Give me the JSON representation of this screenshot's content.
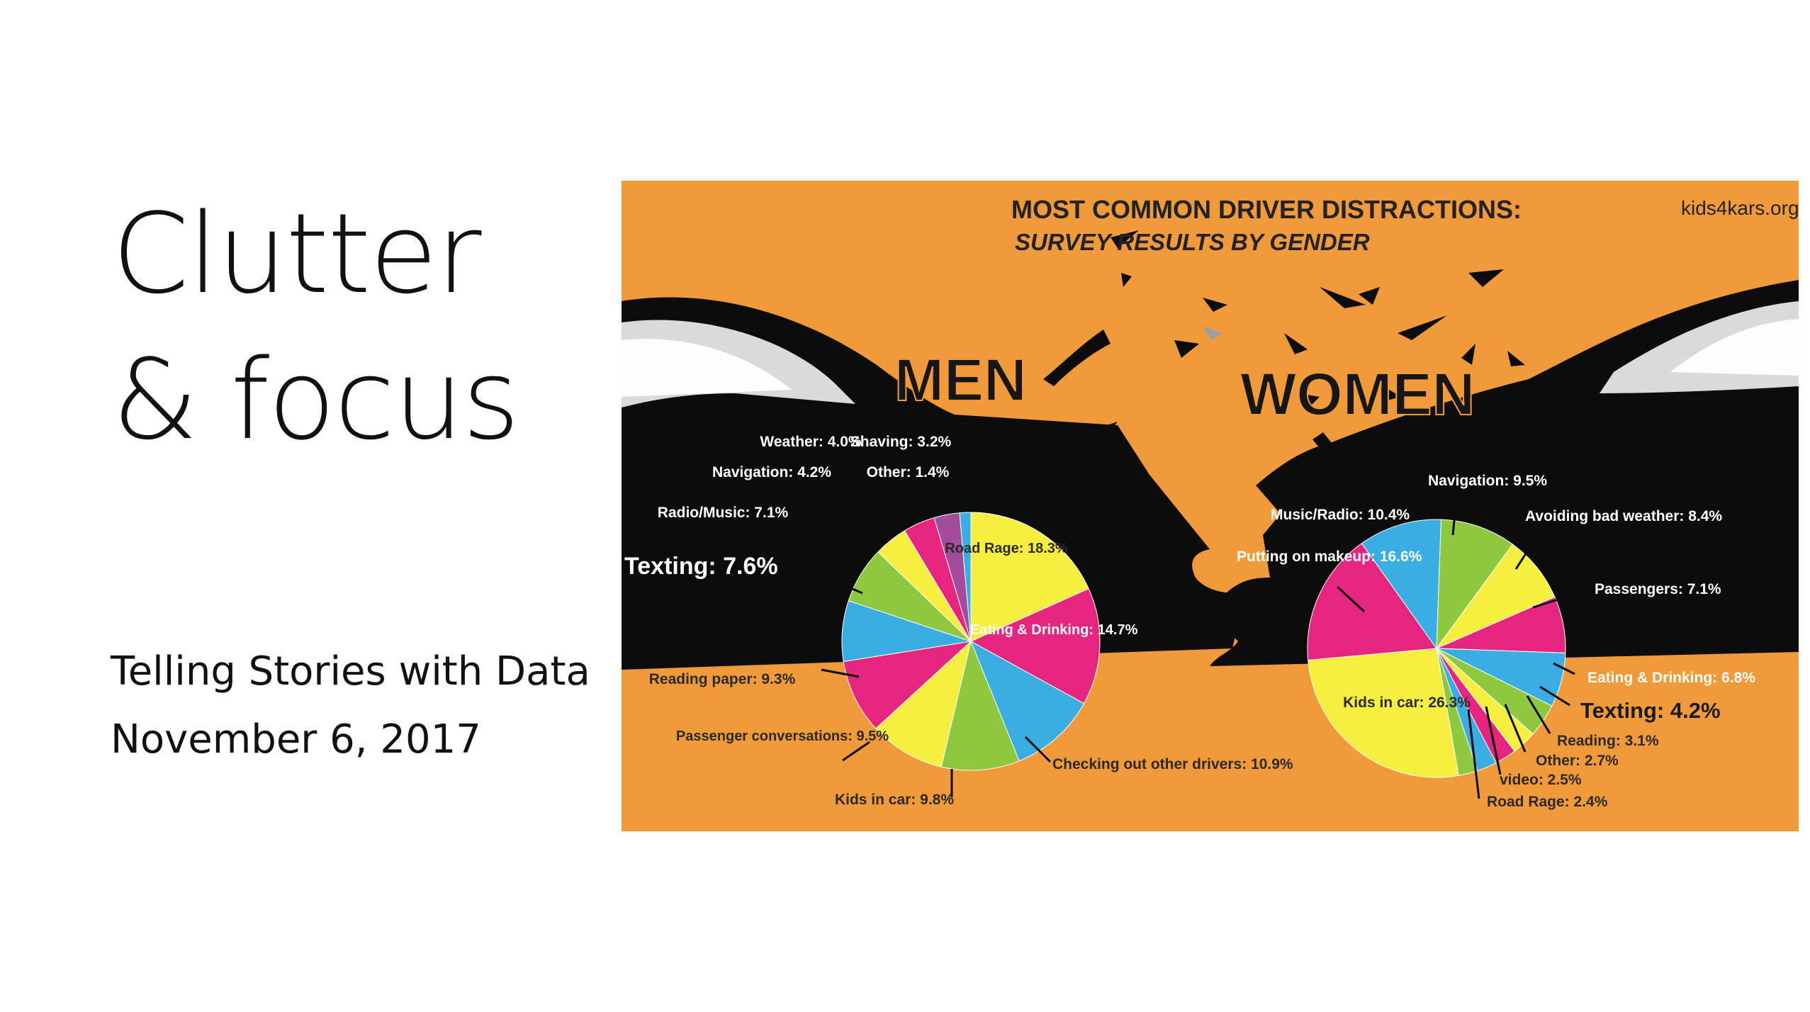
{
  "slide": {
    "title_line1": "Clutter",
    "title_line2": "& focus",
    "subtitle": "Telling Stories with Data",
    "date": "November 6, 2017"
  },
  "infographic": {
    "background": "#f09a3a",
    "title": "MOST COMMON DRIVER DISTRACTIONS:",
    "subtitle": "SURVEY RESULTS BY GENDER",
    "source": "kids4kars.org"
  },
  "palette": {
    "yellow": "#f6ef3f",
    "pink": "#e6267e",
    "green": "#8dc83f",
    "blue": "#38aee3",
    "purple": "#a44c9c",
    "car": "#0c0c0c"
  },
  "chart_data": [
    {
      "type": "pie",
      "title": "MEN",
      "slices": [
        {
          "label": "Road Rage",
          "value": 18.3,
          "display": "Road Rage: 18.3%",
          "color": "yellow"
        },
        {
          "label": "Eating & Drinking",
          "value": 14.7,
          "display": "Eating & Drinking: 14.7%",
          "color": "pink"
        },
        {
          "label": "Checking out other drivers",
          "value": 10.9,
          "display": "Checking out other drivers: 10.9%",
          "color": "blue"
        },
        {
          "label": "Kids in car",
          "value": 9.8,
          "display": "Kids in car: 9.8%",
          "color": "green"
        },
        {
          "label": "Passenger conversations",
          "value": 9.5,
          "display": "Passenger conversations: 9.5%",
          "color": "yellow"
        },
        {
          "label": "Reading paper",
          "value": 9.3,
          "display": "Reading paper: 9.3%",
          "color": "pink"
        },
        {
          "label": "Texting",
          "value": 7.6,
          "display": "Texting: 7.6%",
          "color": "blue"
        },
        {
          "label": "Radio/Music",
          "value": 7.1,
          "display": "Radio/Music: 7.1%",
          "color": "green"
        },
        {
          "label": "Navigation",
          "value": 4.2,
          "display": "Navigation: 4.2%",
          "color": "yellow"
        },
        {
          "label": "Weather",
          "value": 4.0,
          "display": "Weather: 4.0%",
          "color": "pink"
        },
        {
          "label": "Shaving",
          "value": 3.2,
          "display": "Shaving: 3.2%",
          "color": "purple"
        },
        {
          "label": "Other",
          "value": 1.4,
          "display": "Other: 1.4%",
          "color": "blue"
        }
      ]
    },
    {
      "type": "pie",
      "title": "WOMEN",
      "slices": [
        {
          "label": "Navigation",
          "value": 9.5,
          "display": "Navigation: 9.5%",
          "color": "green"
        },
        {
          "label": "Avoiding bad weather",
          "value": 8.4,
          "display": "Avoiding bad weather: 8.4%",
          "color": "yellow"
        },
        {
          "label": "Passengers",
          "value": 7.1,
          "display": "Passengers: 7.1%",
          "color": "pink"
        },
        {
          "label": "Eating & Drinking",
          "value": 6.8,
          "display": "Eating & Drinking: 6.8%",
          "color": "blue"
        },
        {
          "label": "Texting",
          "value": 4.2,
          "display": "Texting: 4.2%",
          "color": "green"
        },
        {
          "label": "Reading",
          "value": 3.1,
          "display": "Reading: 3.1%",
          "color": "yellow"
        },
        {
          "label": "Other",
          "value": 2.7,
          "display": "Other: 2.7%",
          "color": "pink"
        },
        {
          "label": "video",
          "value": 2.5,
          "display": "video: 2.5%",
          "color": "blue"
        },
        {
          "label": "Road Rage",
          "value": 2.4,
          "display": "Road Rage: 2.4%",
          "color": "green"
        },
        {
          "label": "Kids in car",
          "value": 26.3,
          "display": "Kids in car: 26.3%",
          "color": "yellow"
        },
        {
          "label": "Putting on makeup",
          "value": 16.6,
          "display": "Putting on makeup: 16.6%",
          "color": "pink"
        },
        {
          "label": "Music/Radio",
          "value": 10.4,
          "display": "Music/Radio: 10.4%",
          "color": "blue"
        }
      ]
    }
  ]
}
